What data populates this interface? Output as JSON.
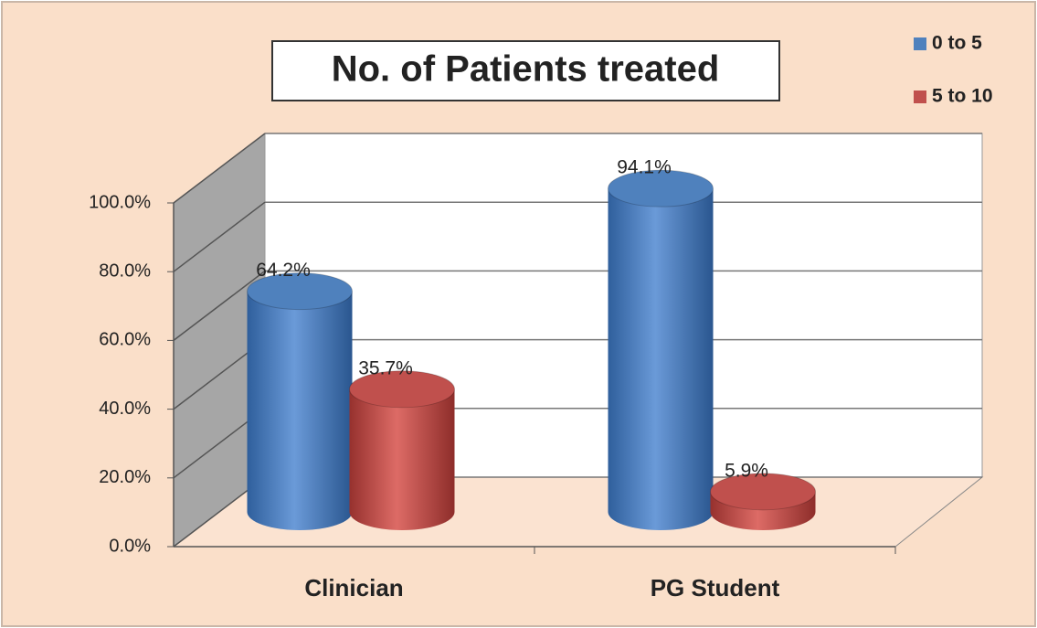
{
  "chart_data": {
    "type": "bar3d",
    "title": "No. of Patients treated",
    "categories": [
      "Clinician",
      "PG Student"
    ],
    "series": [
      {
        "name": "0 to 5",
        "color": "#4f81bd",
        "values": [
          64.2,
          94.1
        ],
        "value_labels": [
          "64.2%",
          "94.1%"
        ]
      },
      {
        "name": "5 to 10",
        "color": "#c0504d",
        "values": [
          35.7,
          5.9
        ],
        "value_labels": [
          "35.7%",
          "5.9%"
        ]
      }
    ],
    "ylim": [
      0,
      100
    ],
    "yticks": [
      {
        "value": 0,
        "label": "0.0%"
      },
      {
        "value": 20,
        "label": "20.0%"
      },
      {
        "value": 40,
        "label": "40.0%"
      },
      {
        "value": 60,
        "label": "60.0%"
      },
      {
        "value": 80,
        "label": "80.0%"
      },
      {
        "value": 100,
        "label": "100.0%"
      }
    ],
    "grid": true,
    "legend": "top-right"
  }
}
